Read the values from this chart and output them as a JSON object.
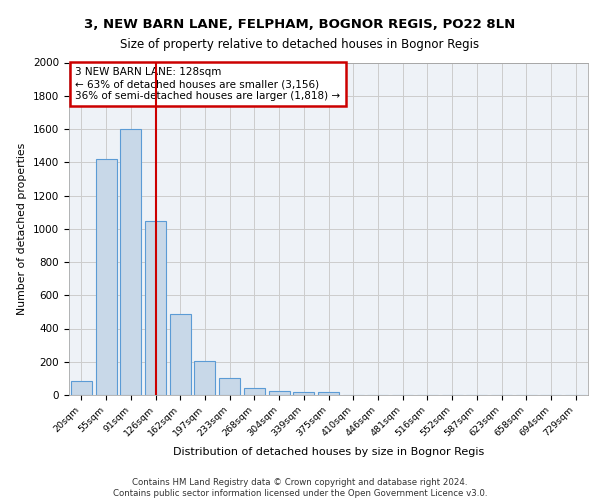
{
  "title1": "3, NEW BARN LANE, FELPHAM, BOGNOR REGIS, PO22 8LN",
  "title2": "Size of property relative to detached houses in Bognor Regis",
  "xlabel": "Distribution of detached houses by size in Bognor Regis",
  "ylabel": "Number of detached properties",
  "categories": [
    "20sqm",
    "55sqm",
    "91sqm",
    "126sqm",
    "162sqm",
    "197sqm",
    "233sqm",
    "268sqm",
    "304sqm",
    "339sqm",
    "375sqm",
    "410sqm",
    "446sqm",
    "481sqm",
    "516sqm",
    "552sqm",
    "587sqm",
    "623sqm",
    "658sqm",
    "694sqm",
    "729sqm"
  ],
  "values": [
    85,
    1420,
    1600,
    1045,
    490,
    205,
    105,
    42,
    25,
    18,
    18,
    0,
    0,
    0,
    0,
    0,
    0,
    0,
    0,
    0,
    0
  ],
  "bar_color": "#c8d8e8",
  "bar_edge_color": "#5b9bd5",
  "vline_x_index": 3,
  "annotation_text": "3 NEW BARN LANE: 128sqm\n← 63% of detached houses are smaller (3,156)\n36% of semi-detached houses are larger (1,818) →",
  "annotation_box_color": "#ffffff",
  "annotation_border_color": "#cc0000",
  "vline_color": "#cc0000",
  "grid_color": "#cccccc",
  "background_color": "#eef2f7",
  "footer_text": "Contains HM Land Registry data © Crown copyright and database right 2024.\nContains public sector information licensed under the Open Government Licence v3.0.",
  "ylim": [
    0,
    2000
  ],
  "yticks": [
    0,
    200,
    400,
    600,
    800,
    1000,
    1200,
    1400,
    1600,
    1800,
    2000
  ]
}
